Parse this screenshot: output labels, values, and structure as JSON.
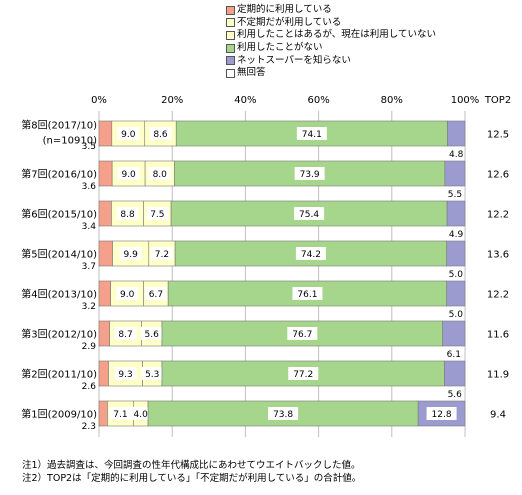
{
  "chart_data": {
    "type": "bar",
    "orientation": "horizontal",
    "stacked": true,
    "xlim": [
      0,
      100
    ],
    "x_ticks": [
      "0%",
      "20%",
      "40%",
      "60%",
      "80%",
      "100%"
    ],
    "top_label": "TOP2",
    "legend_position": "top",
    "grid": true,
    "categories": [
      [
        "第8回(2017/10)",
        "(n=10910)"
      ],
      [
        "第7回(2016/10)"
      ],
      [
        "第6回(2015/10)"
      ],
      [
        "第5回(2014/10)"
      ],
      [
        "第4回(2013/10)"
      ],
      [
        "第3回(2012/10)"
      ],
      [
        "第2回(2011/10)"
      ],
      [
        "第1回(2009/10)"
      ]
    ],
    "series": [
      {
        "name": "定期的に利用している",
        "color": "#f4a08a",
        "values": [
          3.5,
          3.6,
          3.4,
          3.7,
          3.2,
          2.9,
          2.6,
          2.3
        ],
        "labels": [
          "3.5",
          "3.6",
          "3.4",
          "3.7",
          "3.2",
          "2.9",
          "2.6",
          "2.3"
        ]
      },
      {
        "name": "不定期だが利用している",
        "color": "#ffffc8",
        "values": [
          9.0,
          9.0,
          8.8,
          9.9,
          9.0,
          8.7,
          9.3,
          7.1
        ],
        "labels": [
          "9.0",
          "9.0",
          "8.8",
          "9.9",
          "9.0",
          "8.7",
          "9.3",
          "7.1"
        ]
      },
      {
        "name": "利用したことはあるが、現在は利用していない",
        "color": "#ffffc8",
        "values": [
          8.6,
          8.0,
          7.5,
          7.2,
          6.7,
          5.6,
          5.3,
          4.0
        ],
        "labels": [
          "8.6",
          "8.0",
          "7.5",
          "7.2",
          "6.7",
          "5.6",
          "5.3",
          "4.0"
        ]
      },
      {
        "name": "利用したことがない",
        "color": "#a6d58c",
        "values": [
          74.1,
          73.9,
          75.4,
          74.2,
          76.1,
          76.7,
          77.2,
          73.8
        ],
        "labels": [
          "74.1",
          "73.9",
          "75.4",
          "74.2",
          "76.1",
          "76.7",
          "77.2",
          "73.8"
        ]
      },
      {
        "name": "ネットスーパーを知らない",
        "color": "#9b9bd0",
        "values": [
          4.8,
          5.5,
          4.9,
          5.0,
          5.0,
          6.1,
          5.6,
          12.8
        ],
        "labels": [
          "4.8",
          "5.5",
          "4.9",
          "5.0",
          "5.0",
          "6.1",
          "5.6",
          "12.8"
        ]
      },
      {
        "name": "無回答",
        "color": "#ffffff",
        "values": [
          0,
          0,
          0,
          0,
          0,
          0,
          0,
          0
        ],
        "labels": []
      }
    ],
    "top2": [
      "12.5",
      "12.6",
      "12.2",
      "13.6",
      "12.2",
      "11.6",
      "11.9",
      "9.4"
    ]
  },
  "notes": [
    "注1）過去調査は、今回調査の性年代構成比にあわせてウエイトバックした値。",
    "注2）TOP2は「定期的に利用している」「不定期だが利用している」の合計値。"
  ]
}
